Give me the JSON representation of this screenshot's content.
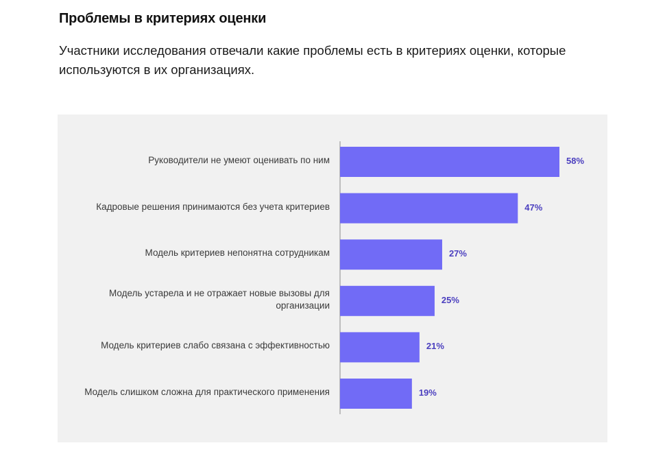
{
  "header": {
    "title": "Проблемы в критериях оценки",
    "subtitle": "Участники исследования отвечали какие проблемы есть в критериях оценки, которые используются в их организациях."
  },
  "colors": {
    "bar": "#716bf6",
    "value_label": "#4b3fbf",
    "panel_bg": "#f1f1f1",
    "axis": "#8a8a8a"
  },
  "chart_data": {
    "type": "bar",
    "orientation": "horizontal",
    "title": "Проблемы в критериях оценки",
    "xlabel": "",
    "ylabel": "",
    "xlim": [
      0,
      58
    ],
    "grid": false,
    "categories": [
      "Руководители не умеют оценивать по ним",
      "Кадровые решения принимаются без учета критериев",
      "Модель критериев непонятна сотрудникам",
      "Модель устарела и не отражает новые вызовы для организации",
      "Модель критериев слабо связана с эффективностью",
      "Модель слишком сложна для практического применения"
    ],
    "values": [
      58,
      47,
      27,
      25,
      21,
      19
    ],
    "value_labels": [
      "58%",
      "47%",
      "27%",
      "25%",
      "21%",
      "19%"
    ]
  }
}
